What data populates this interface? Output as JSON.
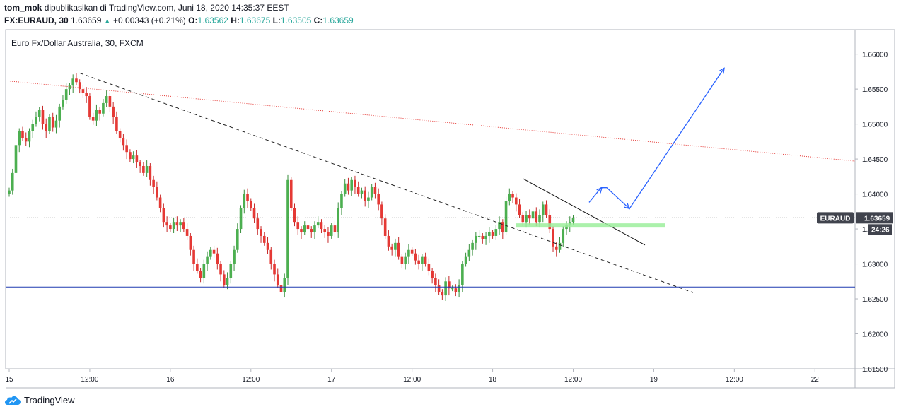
{
  "header": {
    "author": "tom_mok",
    "published_text": "dipublikasikan di TradingView.com, Juni 18, 2020 14:35:37 EEST",
    "symbol": "FX:EURAUD, 30",
    "last": "1.63659",
    "change": "+0.00343 (+0.21%)",
    "o_label": "O:",
    "o_value": "1.63562",
    "h_label": "H:",
    "h_value": "1.63675",
    "l_label": "L:",
    "l_value": "1.63505",
    "c_label": "C:",
    "c_value": "1.63659"
  },
  "footer": {
    "brand": "TradingView"
  },
  "colors": {
    "up": "#26a69a",
    "down": "#ef5350",
    "upBody": "#4caf50",
    "downBody": "#e53935",
    "blue": "#2962ff",
    "red": "#e53935",
    "zone": "#9cef9c"
  },
  "chart_data": {
    "type": "candlestick",
    "title": "Euro Fx/Dollar Australia, 30, FXCM",
    "ylim": [
      1.615,
      1.6635
    ],
    "y_ticks": [
      "1.66000",
      "1.65500",
      "1.65000",
      "1.64500",
      "1.64000",
      "1.63500",
      "1.63000",
      "1.62500",
      "1.62000",
      "1.61500"
    ],
    "x_ticks": [
      {
        "label": "15",
        "bar": 0
      },
      {
        "label": "12:00",
        "bar": 24
      },
      {
        "label": "16",
        "bar": 48
      },
      {
        "label": "12:00",
        "bar": 72
      },
      {
        "label": "17",
        "bar": 96
      },
      {
        "label": "12:00",
        "bar": 120
      },
      {
        "label": "18",
        "bar": 144
      },
      {
        "label": "12:00",
        "bar": 168
      },
      {
        "label": "19",
        "bar": 192
      },
      {
        "label": "12:00",
        "bar": 216
      },
      {
        "label": "22",
        "bar": 240
      }
    ],
    "bar_count_axis": 253,
    "price_label": {
      "symbol": "EURAUD",
      "value": "1.63659",
      "countdown": "24:26"
    },
    "closes": [
      1.6405,
      1.643,
      1.647,
      1.649,
      1.648,
      1.6475,
      1.649,
      1.65,
      1.651,
      1.652,
      1.65,
      1.649,
      1.651,
      1.6495,
      1.6505,
      1.6525,
      1.6535,
      1.655,
      1.6555,
      1.6565,
      1.656,
      1.655,
      1.6545,
      1.654,
      1.651,
      1.6505,
      1.652,
      1.6515,
      1.653,
      1.654,
      1.6525,
      1.651,
      1.649,
      1.648,
      1.647,
      1.646,
      1.645,
      1.6455,
      1.6445,
      1.644,
      1.643,
      1.644,
      1.642,
      1.641,
      1.6395,
      1.638,
      1.636,
      1.6355,
      1.635,
      1.636,
      1.6355,
      1.636,
      1.635,
      1.634,
      1.632,
      1.63,
      1.629,
      1.628,
      1.63,
      1.631,
      1.632,
      1.6315,
      1.63,
      1.6285,
      1.627,
      1.628,
      1.63,
      1.632,
      1.635,
      1.638,
      1.64,
      1.639,
      1.638,
      1.6365,
      1.635,
      1.634,
      1.633,
      1.632,
      1.63,
      1.6285,
      1.627,
      1.626,
      1.628,
      1.642,
      1.638,
      1.636,
      1.635,
      1.6345,
      1.6355,
      1.635,
      1.6345,
      1.6355,
      1.636,
      1.635,
      1.6345,
      1.634,
      1.6355,
      1.6345,
      1.638,
      1.64,
      1.6415,
      1.6405,
      1.642,
      1.641,
      1.64,
      1.6405,
      1.639,
      1.6395,
      1.641,
      1.64,
      1.6385,
      1.6365,
      1.634,
      1.6325,
      1.632,
      1.633,
      1.631,
      1.63,
      1.631,
      1.632,
      1.6315,
      1.6305,
      1.63,
      1.631,
      1.63,
      1.629,
      1.628,
      1.627,
      1.626,
      1.6255,
      1.6275,
      1.6265,
      1.6265,
      1.626,
      1.627,
      1.63,
      1.631,
      1.632,
      1.633,
      1.634,
      1.634,
      1.6335,
      1.634,
      1.6345,
      1.634,
      1.635,
      1.636,
      1.6345,
      1.639,
      1.64,
      1.6395,
      1.6385,
      1.637,
      1.636,
      1.637,
      1.6365,
      1.6375,
      1.636,
      1.637,
      1.6385,
      1.637,
      1.635,
      1.6325,
      1.632,
      1.633,
      1.635,
      1.6355,
      1.636,
      1.6366
    ]
  }
}
